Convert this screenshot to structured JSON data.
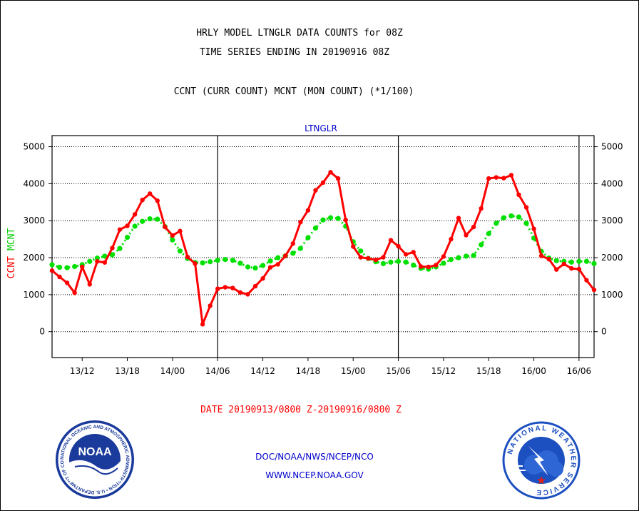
{
  "header": {
    "line1": "HRLY MODEL LTNGLR DATA COUNTS for 08Z",
    "line2": "TIME SERIES ENDING IN 20190916 08Z",
    "line3": "CCNT (CURR COUNT) MCNT (MON COUNT) (*1/100)"
  },
  "footer": {
    "date_range": "DATE 20190913/0800 Z-20190916/0800 Z",
    "org": "DOC/NOAA/NWS/NCEP/NCO",
    "url": "WWW.NCEP.NOAA.GOV"
  },
  "logos": {
    "left": {
      "inner_text": "NOAA",
      "ring_text": "NATIONAL OCEANIC AND ATMOSPHERIC ADMINISTRATION • U.S. DEPARTMENT OF COMMERCE"
    },
    "right": {
      "ring_text": "NATIONAL WEATHER SERVICE"
    }
  },
  "colors": {
    "ccnt": "#ff0000",
    "mcnt": "#00e000",
    "axis": "#000000",
    "text": "#000000",
    "blue_text": "#0000cc",
    "red_text": "#ff0000",
    "noaa_blue": "#1a3a9c",
    "nws_blue": "#1c4fbf"
  },
  "chart_data": {
    "type": "line",
    "title": "LTNGLR",
    "ylabel_left": [
      "CCNT",
      "MCNT"
    ],
    "ylim": [
      -700,
      5300
    ],
    "yticks": [
      0,
      1000,
      2000,
      3000,
      4000,
      5000
    ],
    "ytick_labels": [
      "0",
      "1000",
      "2000",
      "3000",
      "4000",
      "5000"
    ],
    "x_unit": "hours since 20190913/0800 Z",
    "xlim": [
      0,
      72
    ],
    "xticks": [
      4,
      10,
      16,
      22,
      28,
      34,
      40,
      46,
      52,
      58,
      64,
      70
    ],
    "xtick_labels": [
      "13/12",
      "13/18",
      "14/00",
      "14/06",
      "14/12",
      "14/18",
      "15/00",
      "15/06",
      "15/12",
      "15/18",
      "16/00",
      "16/06"
    ],
    "day_boundaries": [
      22,
      46,
      70
    ],
    "grid": "horizontal dotted",
    "series": [
      {
        "name": "CCNT",
        "values": [
          1650,
          1480,
          1320,
          1050,
          1750,
          1280,
          1900,
          1870,
          2260,
          2760,
          2860,
          3170,
          3560,
          3730,
          3540,
          2830,
          2600,
          2720,
          2020,
          1840,
          200,
          700,
          1160,
          1200,
          1180,
          1060,
          1010,
          1230,
          1440,
          1740,
          1820,
          2050,
          2380,
          2960,
          3280,
          3820,
          4030,
          4310,
          4140,
          3020,
          2300,
          2010,
          1980,
          1940,
          2010,
          2470,
          2310,
          2090,
          2150,
          1760,
          1750,
          1800,
          2030,
          2500,
          3070,
          2610,
          2830,
          3330,
          4140,
          4170,
          4150,
          4230,
          3700,
          3360,
          2780,
          2050,
          1960,
          1680,
          1830,
          1710,
          1690,
          1390,
          1130
        ]
      },
      {
        "name": "MCNT",
        "values": [
          1810,
          1740,
          1730,
          1760,
          1810,
          1900,
          1990,
          2040,
          2080,
          2250,
          2550,
          2850,
          2980,
          3050,
          3040,
          2840,
          2480,
          2180,
          1980,
          1870,
          1860,
          1890,
          1930,
          1950,
          1930,
          1850,
          1750,
          1720,
          1790,
          1910,
          2000,
          2050,
          2120,
          2250,
          2540,
          2800,
          3020,
          3080,
          3060,
          2850,
          2430,
          2180,
          1980,
          1890,
          1840,
          1880,
          1900,
          1880,
          1800,
          1710,
          1690,
          1750,
          1850,
          1950,
          2000,
          2040,
          2060,
          2350,
          2650,
          2930,
          3080,
          3130,
          3100,
          2930,
          2530,
          2170,
          1990,
          1920,
          1900,
          1880,
          1900,
          1900,
          1840
        ]
      }
    ]
  }
}
